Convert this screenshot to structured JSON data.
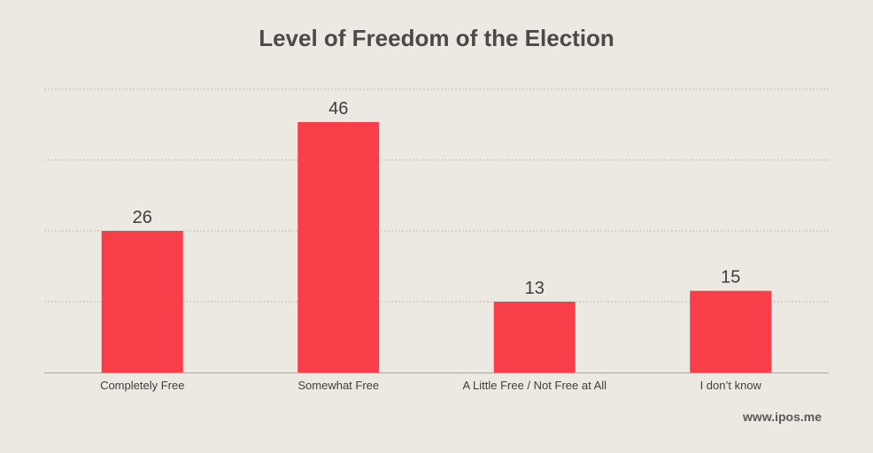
{
  "chart_data": {
    "type": "bar",
    "title": "Level of Freedom of the Election",
    "categories": [
      "Completely Free",
      "Somewhat Free",
      "A Little Free / Not Free at All",
      "I don’t know"
    ],
    "values": [
      26,
      46,
      13,
      15
    ],
    "ylim": [
      0,
      52
    ],
    "gridlines": [
      13,
      26,
      39,
      52
    ],
    "grid": true,
    "bar_color": "#f73e49",
    "xlabel": "",
    "ylabel": ""
  },
  "footer": {
    "source": "www.ipos.me"
  }
}
